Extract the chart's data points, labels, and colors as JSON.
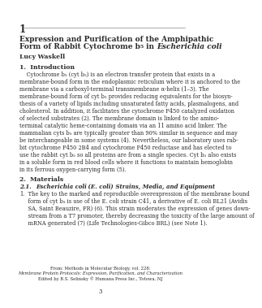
{
  "chapter_number": "1",
  "title_line1": "Expression and Purification of the Amphipathic",
  "title_line2_a": "Form of Rabbit Cytochrome b",
  "title_line2_sub": "5",
  "title_line2_b": " in ",
  "title_line2_italic": "Escherichia coli",
  "author": "Lucy Waskell",
  "s1": "1.  Introduction",
  "intro_lines": [
    "    Cytochrome b₅ (cyt b₅) is an electron transfer protein that exists in a",
    "membrane-bound form in the endoplasmic reticulum where it is anchored to the",
    "membrane via a carboxyl-terminal transmembrane α-helix (1–3). The",
    "membrane-bound form of cyt b₅ provides reducing equivalents for the biosyn-",
    "thesis of a variety of lipids including unsaturated fatty acids, plasmalogens, and",
    "cholesterol. In addition, it facilitates the cytochrome P450 catalyzed oxidation",
    "of selected substrates (2). The membrane domain is linked to the amino-",
    "terminal catalytic heme-containing domain via an 11 amino acid linker. The",
    "mammalian cyts b₅ are typically greater than 90% similar in sequence and may",
    "be interchangeable in some systems (4). Nevertheless, our laboratory uses rab-",
    "bit cytochrome P450 2B4 and cytochrome P450 reductase and has elected to",
    "use the rabbit cyt b₅ so all proteins are from a single species. Cyt b₅ also exists",
    "in a soluble form in red blood cells where it functions to maintain hemoglobin",
    "in its ferrous oxygen-carrying form (5)."
  ],
  "s2": "2.  Materials",
  "s21_prefix": "2.1.  ",
  "s21_italic": "Escherichia coli",
  "s21_italic2": " (E. coli)",
  "s21_rest": " Strains, Media, and Equipment",
  "item1_num": "1.",
  "item1_lines": [
    "     The key to the marked and reproducible overexpression of the membrane bound",
    "     form of cyt b₅ is use of the E. coli strain C41, a derivative of E. coli BL21 (Avidis",
    "     SA, Saint Beauzire, FR) (6). This strain moderates the expression of genes down-",
    "     stream from a T7 promoter, thereby decreasing the toxicity of the large amount of",
    "     mRNA generated (7) (Life Technologies-Gibco BRL) (see Note 1)."
  ],
  "footer1": "From: Methods in Molecular Biology, vol. 228:",
  "footer2": "Membrane Protein Protocols: Expression, Purification, and Characterization",
  "footer3": "Edited by B.S. Selinsky © Humana Press Inc., Totowa, NJ",
  "page_num": "3",
  "bg_color": "#ffffff",
  "text_color": "#2a2a2a",
  "line_color": "#888888"
}
